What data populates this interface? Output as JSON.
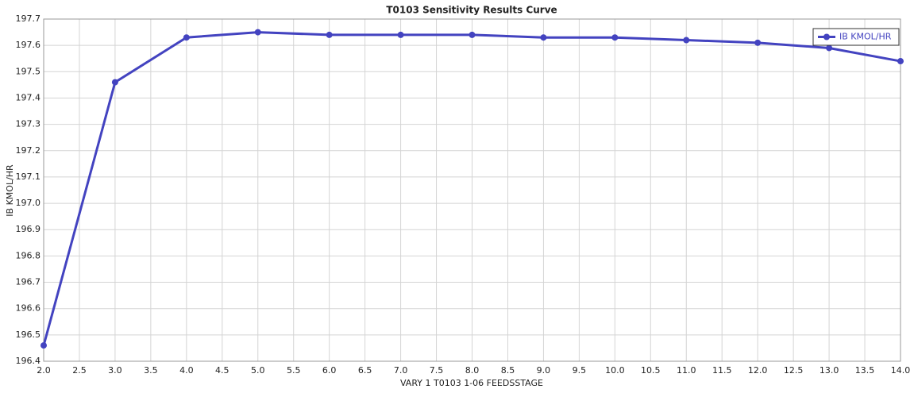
{
  "chart_data": {
    "type": "line",
    "title": "T0103 Sensitivity Results Curve",
    "x_label": "VARY  1 T0103 1-06 FEEDSSTAGE",
    "y_label": "IB KMOL/HR",
    "x": [
      2,
      3,
      4,
      5,
      6,
      7,
      8,
      9,
      10,
      11,
      12,
      13,
      14
    ],
    "series": [
      {
        "name": "IB KMOL/HR",
        "color": "#4343c0",
        "values": [
          196.46,
          197.46,
          197.63,
          197.65,
          197.64,
          197.64,
          197.64,
          197.63,
          197.63,
          197.62,
          197.61,
          197.59,
          197.54
        ]
      }
    ],
    "xlim": [
      2,
      14
    ],
    "xticks": [
      {
        "value": 2,
        "label": "2.0"
      },
      2.5,
      {
        "value": 3,
        "label": "3.0"
      },
      3.5,
      {
        "value": 4,
        "label": "4.0"
      },
      4.5,
      {
        "value": 5,
        "label": "5.0"
      },
      5.5,
      {
        "value": 6,
        "label": "6.0"
      },
      6.5,
      {
        "value": 7,
        "label": "7.0"
      },
      7.5,
      {
        "value": 8,
        "label": "8.0"
      },
      8.5,
      {
        "value": 9,
        "label": "9.0"
      },
      9.5,
      {
        "value": 10,
        "label": "10.0"
      },
      10.5,
      {
        "value": 11,
        "label": "11.0"
      },
      11.5,
      {
        "value": 12,
        "label": "12.0"
      },
      12.5,
      {
        "value": 13,
        "label": "13.0"
      },
      13.5,
      {
        "value": 14,
        "label": "14.0"
      }
    ],
    "ylim": [
      196.4,
      197.7
    ],
    "yticks": [
      196.4,
      196.5,
      196.6,
      196.7,
      196.8,
      196.9,
      {
        "value": 197,
        "label": "197.0"
      },
      197.1,
      197.2,
      197.3,
      197.4,
      197.5,
      197.6,
      197.7
    ],
    "grid": true,
    "legend": "top-right"
  }
}
